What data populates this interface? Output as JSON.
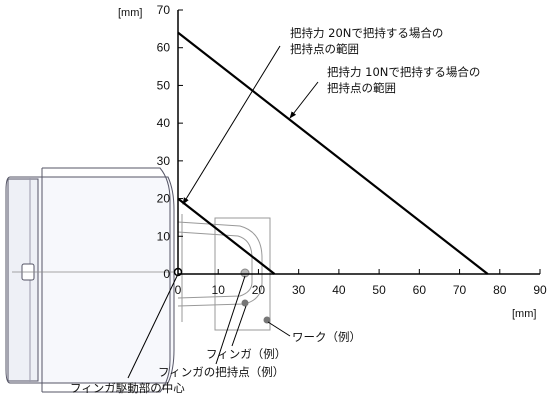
{
  "units": {
    "y": "[mm]",
    "x": "[mm]"
  },
  "chart_data": {
    "type": "line",
    "x_ticks": [
      0,
      10,
      20,
      30,
      40,
      50,
      60,
      70,
      80,
      90
    ],
    "y_ticks": [
      0,
      10,
      20,
      30,
      40,
      50,
      60,
      70
    ],
    "xlim": [
      0,
      90
    ],
    "ylim": [
      0,
      70
    ],
    "grid": false,
    "series": [
      {
        "points": [
          [
            0,
            64
          ],
          [
            77,
            0
          ]
        ],
        "color": "#000000"
      },
      {
        "points": [
          [
            0,
            20
          ],
          [
            24,
            0
          ]
        ],
        "color": "#000000"
      }
    ]
  },
  "annotations": {
    "range_20n_line1": "把持力 20Nで把持する場合の",
    "range_20n_line2": "把持点の範囲",
    "range_10n_line1": "把持力 10Nで把持する場合の",
    "range_10n_line2": "把持点の範囲",
    "work": "ワーク（例）",
    "finger": "フィンガ（例）",
    "grip_point": "フィンガの把持点（例）",
    "drive_center": "フィンガ駆動部の中心"
  }
}
